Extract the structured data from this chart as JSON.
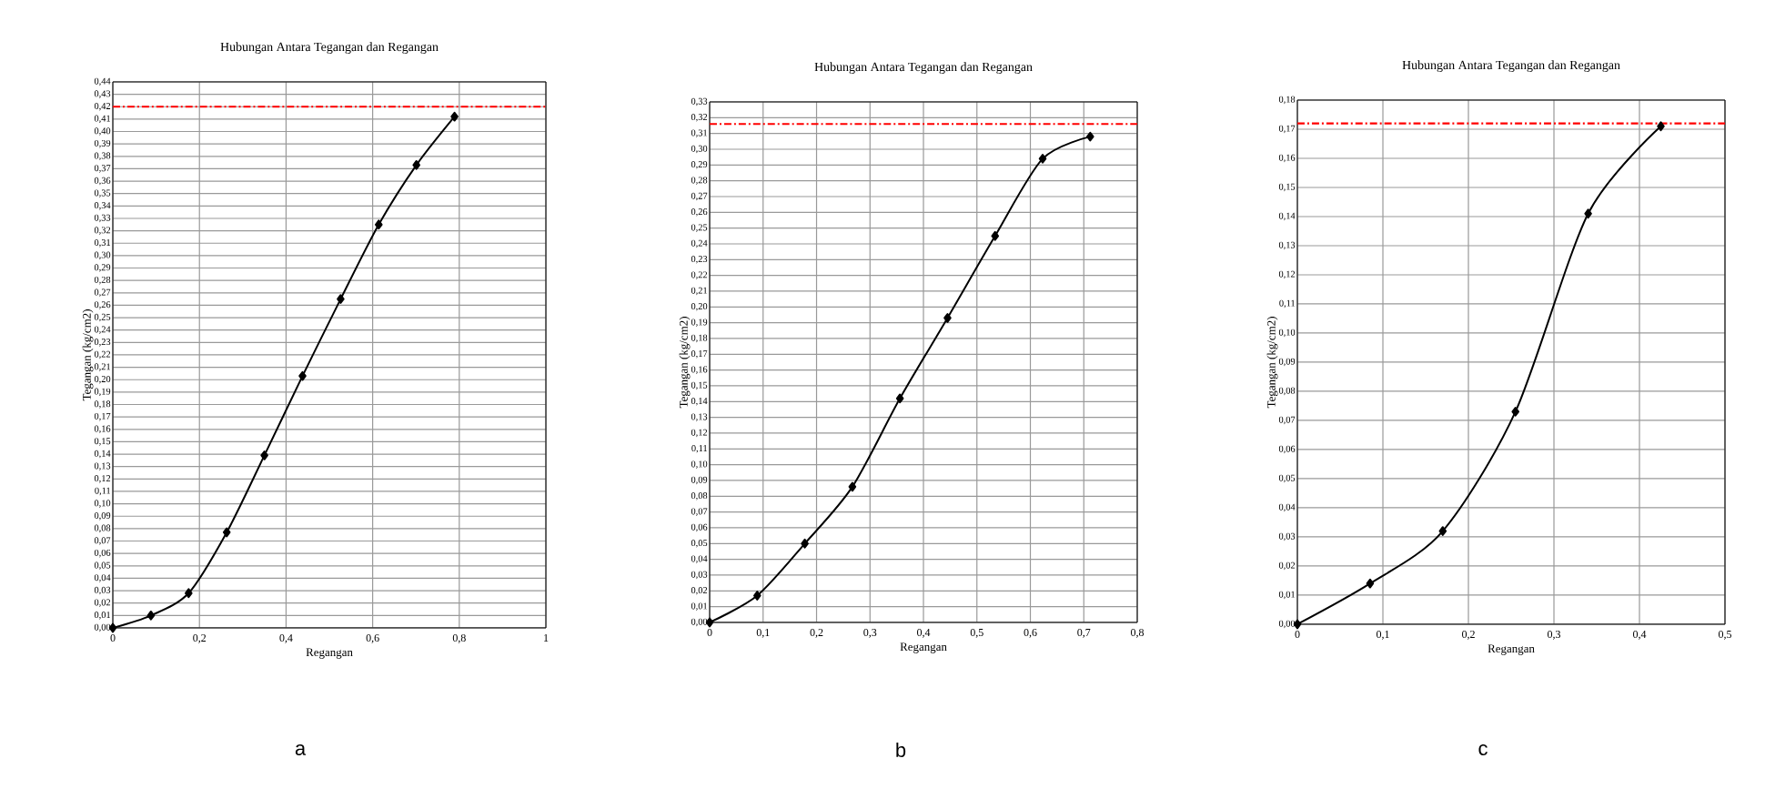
{
  "chart_data": [
    {
      "type": "line",
      "title": "Hubungan Antara Tegangan dan Regangan",
      "xlabel": "Regangan",
      "ylabel": "Tegangan (kg/cm2)",
      "annotations": [
        "a"
      ],
      "color": "#000000",
      "marker": "diamond",
      "grid": true,
      "x": [
        0,
        0.088,
        0.175,
        0.263,
        0.35,
        0.438,
        0.526,
        0.614,
        0.701,
        0.789
      ],
      "values": [
        0,
        0.01,
        0.028,
        0.077,
        0.139,
        0.203,
        0.265,
        0.325,
        0.373,
        0.412
      ],
      "ref_lines": [
        {
          "axis": "y",
          "value": 0.42,
          "color": "#ff0000",
          "line_style": "dashdot"
        }
      ],
      "xlim": [
        0,
        1
      ],
      "ylim": [
        0,
        0.44
      ],
      "xticks": [
        0,
        {
          "value": 0.2,
          "label": "0,2"
        },
        {
          "value": 0.4,
          "label": "0,4"
        },
        {
          "value": 0.6,
          "label": "0,6"
        },
        {
          "value": 0.8,
          "label": "0,8"
        },
        1
      ],
      "yticks": [
        {
          "value": 0,
          "label": "0,00"
        },
        {
          "value": 0.01,
          "label": "0,01"
        },
        {
          "value": 0.02,
          "label": "0,02"
        },
        {
          "value": 0.03,
          "label": "0,03"
        },
        {
          "value": 0.04,
          "label": "0,04"
        },
        {
          "value": 0.05,
          "label": "0,05"
        },
        {
          "value": 0.06,
          "label": "0,06"
        },
        {
          "value": 0.07,
          "label": "0,07"
        },
        {
          "value": 0.08,
          "label": "0,08"
        },
        {
          "value": 0.09,
          "label": "0,09"
        },
        {
          "value": 0.1,
          "label": "0,10"
        },
        {
          "value": 0.11,
          "label": "0,11"
        },
        {
          "value": 0.12,
          "label": "0,12"
        },
        {
          "value": 0.13,
          "label": "0,13"
        },
        {
          "value": 0.14,
          "label": "0,14"
        },
        {
          "value": 0.15,
          "label": "0,15"
        },
        {
          "value": 0.16,
          "label": "0,16"
        },
        {
          "value": 0.17,
          "label": "0,17"
        },
        {
          "value": 0.18,
          "label": "0,18"
        },
        {
          "value": 0.19,
          "label": "0,19"
        },
        {
          "value": 0.2,
          "label": "0,20"
        },
        {
          "value": 0.21,
          "label": "0,21"
        },
        {
          "value": 0.22,
          "label": "0,22"
        },
        {
          "value": 0.23,
          "label": "0,23"
        },
        {
          "value": 0.24,
          "label": "0,24"
        },
        {
          "value": 0.25,
          "label": "0,25"
        },
        {
          "value": 0.26,
          "label": "0,26"
        },
        {
          "value": 0.27,
          "label": "0,27"
        },
        {
          "value": 0.28,
          "label": "0,28"
        },
        {
          "value": 0.29,
          "label": "0,29"
        },
        {
          "value": 0.3,
          "label": "0,30"
        },
        {
          "value": 0.31,
          "label": "0,31"
        },
        {
          "value": 0.32,
          "label": "0,32"
        },
        {
          "value": 0.33,
          "label": "0,33"
        },
        {
          "value": 0.34,
          "label": "0,34"
        },
        {
          "value": 0.35,
          "label": "0,35"
        },
        {
          "value": 0.36,
          "label": "0,36"
        },
        {
          "value": 0.37,
          "label": "0,37"
        },
        {
          "value": 0.38,
          "label": "0,38"
        },
        {
          "value": 0.39,
          "label": "0,39"
        },
        {
          "value": 0.4,
          "label": "0,40"
        },
        {
          "value": 0.41,
          "label": "0,41"
        },
        {
          "value": 0.42,
          "label": "0,42"
        },
        {
          "value": 0.43,
          "label": "0,43"
        },
        {
          "value": 0.44,
          "label": "0,44"
        }
      ]
    },
    {
      "type": "line",
      "title": "Hubungan Antara Tegangan dan Regangan",
      "xlabel": "Regangan",
      "ylabel": "Tegangan (kg/cm2)",
      "annotations": [
        "b"
      ],
      "color": "#000000",
      "marker": "diamond",
      "grid": true,
      "x": [
        0,
        0.089,
        0.178,
        0.267,
        0.356,
        0.445,
        0.534,
        0.623,
        0.712
      ],
      "values": [
        0,
        0.017,
        0.05,
        0.086,
        0.142,
        0.193,
        0.245,
        0.294,
        0.308
      ],
      "ref_lines": [
        {
          "axis": "y",
          "value": 0.316,
          "color": "#ff0000",
          "line_style": "dashdot"
        }
      ],
      "xlim": [
        0,
        0.8
      ],
      "ylim": [
        0,
        0.33
      ],
      "xticks": [
        0,
        {
          "value": 0.1,
          "label": "0,1"
        },
        {
          "value": 0.2,
          "label": "0,2"
        },
        {
          "value": 0.3,
          "label": "0,3"
        },
        {
          "value": 0.4,
          "label": "0,4"
        },
        {
          "value": 0.5,
          "label": "0,5"
        },
        {
          "value": 0.6,
          "label": "0,6"
        },
        {
          "value": 0.7,
          "label": "0,7"
        },
        {
          "value": 0.8,
          "label": "0,8"
        }
      ],
      "yticks": [
        {
          "value": 0,
          "label": "0,00"
        },
        {
          "value": 0.01,
          "label": "0,01"
        },
        {
          "value": 0.02,
          "label": "0,02"
        },
        {
          "value": 0.03,
          "label": "0,03"
        },
        {
          "value": 0.04,
          "label": "0,04"
        },
        {
          "value": 0.05,
          "label": "0,05"
        },
        {
          "value": 0.06,
          "label": "0,06"
        },
        {
          "value": 0.07,
          "label": "0,07"
        },
        {
          "value": 0.08,
          "label": "0,08"
        },
        {
          "value": 0.09,
          "label": "0,09"
        },
        {
          "value": 0.1,
          "label": "0,10"
        },
        {
          "value": 0.11,
          "label": "0,11"
        },
        {
          "value": 0.12,
          "label": "0,12"
        },
        {
          "value": 0.13,
          "label": "0,13"
        },
        {
          "value": 0.14,
          "label": "0,14"
        },
        {
          "value": 0.15,
          "label": "0,15"
        },
        {
          "value": 0.16,
          "label": "0,16"
        },
        {
          "value": 0.17,
          "label": "0,17"
        },
        {
          "value": 0.18,
          "label": "0,18"
        },
        {
          "value": 0.19,
          "label": "0,19"
        },
        {
          "value": 0.2,
          "label": "0,20"
        },
        {
          "value": 0.21,
          "label": "0,21"
        },
        {
          "value": 0.22,
          "label": "0,22"
        },
        {
          "value": 0.23,
          "label": "0,23"
        },
        {
          "value": 0.24,
          "label": "0,24"
        },
        {
          "value": 0.25,
          "label": "0,25"
        },
        {
          "value": 0.26,
          "label": "0,26"
        },
        {
          "value": 0.27,
          "label": "0,27"
        },
        {
          "value": 0.28,
          "label": "0,28"
        },
        {
          "value": 0.29,
          "label": "0,29"
        },
        {
          "value": 0.3,
          "label": "0,30"
        },
        {
          "value": 0.31,
          "label": "0,31"
        },
        {
          "value": 0.32,
          "label": "0,32"
        },
        {
          "value": 0.33,
          "label": "0,33"
        }
      ]
    },
    {
      "type": "line",
      "title": "Hubungan Antara Tegangan dan Regangan",
      "xlabel": "Regangan",
      "ylabel": "Tegangan (kg/cm2)",
      "annotations": [
        "c"
      ],
      "color": "#000000",
      "marker": "diamond",
      "grid": true,
      "x": [
        0,
        0.085,
        0.17,
        0.255,
        0.34,
        0.425
      ],
      "values": [
        0,
        0.014,
        0.032,
        0.073,
        0.141,
        0.171
      ],
      "ref_lines": [
        {
          "axis": "y",
          "value": 0.172,
          "color": "#ff0000",
          "line_style": "dashdot"
        }
      ],
      "xlim": [
        0,
        0.5
      ],
      "ylim": [
        0,
        0.18
      ],
      "xticks": [
        0,
        {
          "value": 0.1,
          "label": "0,1"
        },
        {
          "value": 0.2,
          "label": "0,2"
        },
        {
          "value": 0.3,
          "label": "0,3"
        },
        {
          "value": 0.4,
          "label": "0,4"
        },
        {
          "value": 0.5,
          "label": "0,5"
        }
      ],
      "yticks": [
        {
          "value": 0,
          "label": "0,00"
        },
        {
          "value": 0.01,
          "label": "0,01"
        },
        {
          "value": 0.02,
          "label": "0,02"
        },
        {
          "value": 0.03,
          "label": "0,03"
        },
        {
          "value": 0.04,
          "label": "0,04"
        },
        {
          "value": 0.05,
          "label": "0,05"
        },
        {
          "value": 0.06,
          "label": "0,06"
        },
        {
          "value": 0.07,
          "label": "0,07"
        },
        {
          "value": 0.08,
          "label": "0,08"
        },
        {
          "value": 0.09,
          "label": "0,09"
        },
        {
          "value": 0.1,
          "label": "0,10"
        },
        {
          "value": 0.11,
          "label": "0,11"
        },
        {
          "value": 0.12,
          "label": "0,12"
        },
        {
          "value": 0.13,
          "label": "0,13"
        },
        {
          "value": 0.14,
          "label": "0,14"
        },
        {
          "value": 0.15,
          "label": "0,15"
        },
        {
          "value": 0.16,
          "label": "0,16"
        },
        {
          "value": 0.17,
          "label": "0,17"
        },
        {
          "value": 0.18,
          "label": "0,18"
        }
      ]
    }
  ]
}
